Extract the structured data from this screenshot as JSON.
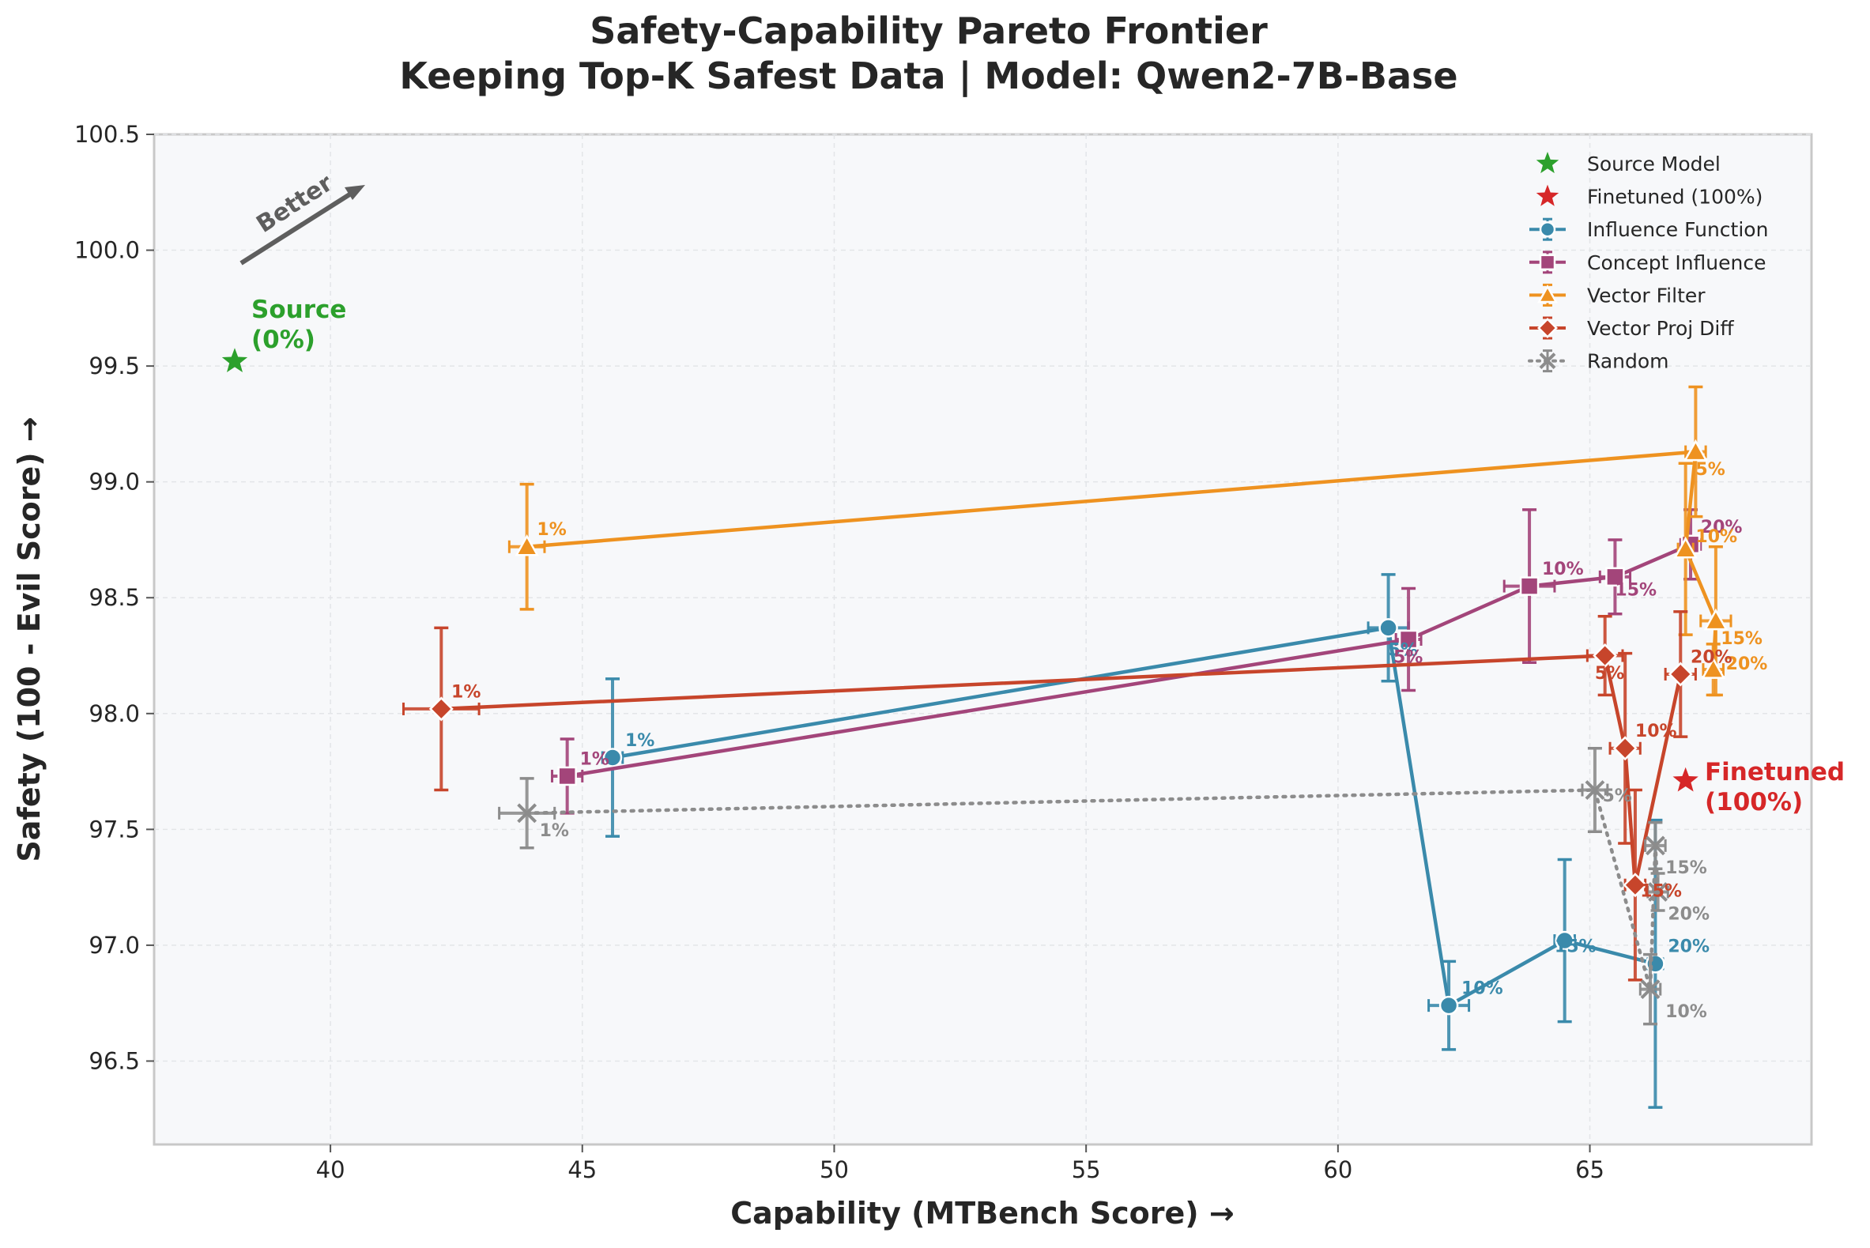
{
  "chart_data": {
    "type": "scatter",
    "title": "Safety-Capability Pareto Frontier",
    "subtitle": "Keeping Top-K Safest Data | Model: Qwen2-7B-Base",
    "xlabel": "Capability (MTBench Score) →",
    "ylabel": "Safety (100 - Evil Score) →",
    "xlim": [
      36.5,
      69.4
    ],
    "ylim": [
      96.14,
      100.5
    ],
    "xticks": [
      40,
      45,
      50,
      55,
      60,
      65
    ],
    "yticks": [
      96.5,
      97.0,
      97.5,
      98.0,
      98.5,
      99.0,
      99.5,
      100.0,
      100.5
    ],
    "xtick_labels": [
      "40",
      "45",
      "50",
      "55",
      "60",
      "65"
    ],
    "ytick_labels": [
      "96.5",
      "97.0",
      "97.5",
      "98.0",
      "98.5",
      "99.0",
      "99.5",
      "100.0",
      "100.5"
    ],
    "grid": true,
    "legend_position": "top-right",
    "annotations": {
      "better": "Better",
      "source_line1": "Source",
      "source_line2": "(0%)",
      "finetuned_line1": "Finetuned",
      "finetuned_line2": "(100%)"
    },
    "reference_points": [
      {
        "name": "Source Model",
        "x": 38.1,
        "y": 99.52,
        "color": "#2ca02c"
      },
      {
        "name": "Finetuned (100%)",
        "x": 66.9,
        "y": 97.71,
        "color": "#d62728"
      }
    ],
    "series": [
      {
        "name": "Influence Function",
        "color": "#3a8aab",
        "marker": "circle",
        "style": "solid",
        "labels": [
          "1%",
          "5%",
          "10%",
          "15%",
          "20%"
        ],
        "x": [
          45.6,
          61.0,
          62.2,
          64.5,
          66.3
        ],
        "y": [
          97.81,
          98.37,
          96.74,
          97.02,
          96.92
        ],
        "xerr": [
          0.2,
          0.4,
          0.4,
          0.2,
          0.15
        ],
        "yerr": [
          0.34,
          0.23,
          0.19,
          0.35,
          0.62
        ],
        "label_dx": [
          0.25,
          0.0,
          0.25,
          -0.2,
          0.25
        ],
        "label_dy": [
          0.05,
          -0.12,
          0.05,
          -0.05,
          0.05
        ]
      },
      {
        "name": "Concept Influence",
        "color": "#a3457a",
        "marker": "square",
        "style": "solid",
        "labels": [
          "1%",
          "5%",
          "10%",
          "15%",
          "20%"
        ],
        "x": [
          44.7,
          61.4,
          63.8,
          65.5,
          67.0
        ],
        "y": [
          97.73,
          98.32,
          98.55,
          98.59,
          98.73
        ],
        "xerr": [
          0.3,
          0.25,
          0.5,
          0.3,
          0.2
        ],
        "yerr": [
          0.16,
          0.22,
          0.33,
          0.16,
          0.15
        ],
        "label_dx": [
          0.25,
          -0.3,
          0.25,
          0.0,
          0.2
        ],
        "label_dy": [
          0.05,
          -0.1,
          0.05,
          -0.08,
          0.05
        ]
      },
      {
        "name": "Vector Filter",
        "color": "#ee9220",
        "marker": "triangle",
        "style": "solid",
        "labels": [
          "1%",
          "5%",
          "10%",
          "15%",
          "20%"
        ],
        "x": [
          43.9,
          67.1,
          66.9,
          67.5,
          67.45
        ],
        "y": [
          98.72,
          99.13,
          98.71,
          98.4,
          98.19
        ],
        "xerr": [
          0.35,
          0.2,
          0.15,
          0.3,
          0.2
        ],
        "yerr": [
          0.27,
          0.28,
          0.37,
          0.32,
          0.11
        ],
        "label_dx": [
          0.2,
          0.0,
          0.2,
          0.1,
          0.25
        ],
        "label_dy": [
          0.05,
          -0.1,
          0.03,
          -0.1,
          0.0
        ]
      },
      {
        "name": "Vector Proj Diff",
        "color": "#c7452b",
        "marker": "diamond",
        "style": "solid",
        "labels": [
          "1%",
          "5%",
          "10%",
          "15%",
          "20%"
        ],
        "x": [
          42.2,
          65.3,
          65.7,
          65.9,
          66.8
        ],
        "y": [
          98.02,
          98.25,
          97.85,
          97.26,
          98.17
        ],
        "xerr": [
          0.75,
          0.35,
          0.3,
          0.2,
          0.3
        ],
        "yerr": [
          0.35,
          0.17,
          0.41,
          0.41,
          0.27
        ],
        "label_dx": [
          0.2,
          -0.2,
          0.2,
          0.1,
          0.2
        ],
        "label_dy": [
          0.05,
          -0.1,
          0.05,
          -0.05,
          0.05
        ]
      },
      {
        "name": "Random",
        "color": "#8c8c8c",
        "marker": "x",
        "style": "dotted",
        "labels": [
          "1%",
          "5%",
          "10%",
          "15%",
          "20%"
        ],
        "x": [
          43.9,
          65.1,
          66.2,
          66.3,
          66.35
        ],
        "y": [
          97.57,
          97.67,
          96.81,
          97.43,
          97.23
        ],
        "xerr": [
          0.55,
          0.25,
          0.2,
          0.2,
          0.2
        ],
        "yerr": [
          0.15,
          0.18,
          0.15,
          0.1,
          0.08
        ],
        "label_dx": [
          0.25,
          0.15,
          0.3,
          0.2,
          0.2
        ],
        "label_dy": [
          -0.1,
          -0.05,
          -0.12,
          -0.12,
          -0.12
        ]
      }
    ]
  }
}
